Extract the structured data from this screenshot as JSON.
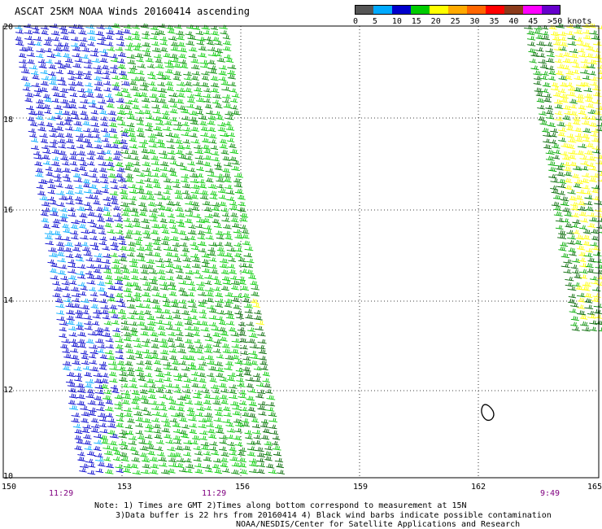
{
  "title": "ASCAT 25KM NOAA Winds 20160414 ascending",
  "legend": {
    "colors": [
      "#555555",
      "#00aaff",
      "#0000cc",
      "#00cc00",
      "#ffff00",
      "#ffaa00",
      "#ff6600",
      "#ff0000",
      "#8b3a1a",
      "#ff00ff",
      "#6600cc"
    ],
    "labels": [
      "0",
      "5",
      "10",
      "15",
      "20",
      "25",
      "30",
      "35",
      "40",
      "45",
      ">50 knots"
    ]
  },
  "latitudes": [
    "20",
    "18",
    "16",
    "14",
    "12",
    "10"
  ],
  "longitudes": [
    "150",
    "153",
    "156",
    "159",
    "162",
    "165"
  ],
  "times": [
    "11:29",
    "11:29",
    "9:49"
  ],
  "notes": [
    "Note: 1) Times are GMT 2)Times along bottom correspond to measurement at 15N",
    "3)Data buffer is 22 hrs from 20160414 4) Black wind barbs indicate possible contamination",
    "NOAA/NESDIS/Center for Satellite Applications and Research"
  ]
}
